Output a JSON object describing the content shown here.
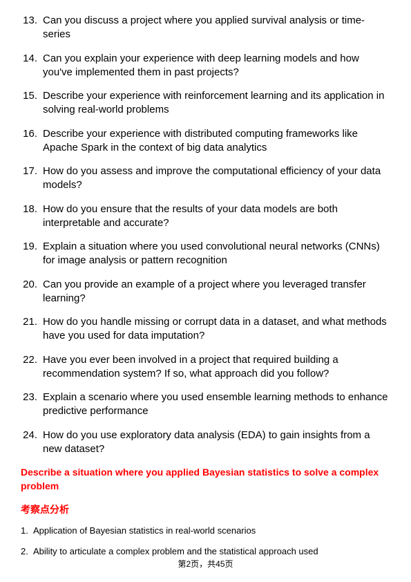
{
  "questions": [
    {
      "num": "13.",
      "text": "Can you discuss a project where you applied survival analysis or time-series"
    },
    {
      "num": "14.",
      "text": "Can you explain your experience with deep learning models and how you've implemented them in past projects?"
    },
    {
      "num": "15.",
      "text": "Describe your experience with reinforcement learning and its application in solving real-world problems"
    },
    {
      "num": "16.",
      "text": "Describe your experience with distributed computing frameworks like Apache Spark in the context of big data analytics"
    },
    {
      "num": "17.",
      "text": "How do you assess and improve the computational efficiency of your data models?"
    },
    {
      "num": "18.",
      "text": "How do you ensure that the results of your data models are both interpretable and accurate?"
    },
    {
      "num": "19.",
      "text": "Explain a situation where you used convolutional neural networks (CNNs) for image analysis or pattern recognition"
    },
    {
      "num": "20.",
      "text": "Can you provide an example of a project where you leveraged transfer learning?"
    },
    {
      "num": "21.",
      "text": "How do you handle missing or corrupt data in a dataset, and what methods have you used for data imputation?"
    },
    {
      "num": "22.",
      "text": "Have you ever been involved in a project that required building a recommendation system? If so, what approach did you follow?"
    },
    {
      "num": "23.",
      "text": "Explain a scenario where you used ensemble learning methods to enhance predictive performance"
    },
    {
      "num": "24.",
      "text": "How do you use exploratory data analysis (EDA) to gain insights from a new dataset?"
    }
  ],
  "redHeading": "Describe a situation where you applied Bayesian statistics to solve a complex problem",
  "sectionLabel": "考察点分析",
  "subItems": [
    {
      "num": "1.",
      "text": "Application of Bayesian statistics in real-world scenarios"
    },
    {
      "num": "2.",
      "text": "Ability to articulate a complex problem and the statistical approach used"
    }
  ],
  "footer": "第2页，共45页",
  "colors": {
    "text": "#000000",
    "accent": "#ff0000",
    "background": "#ffffff"
  }
}
